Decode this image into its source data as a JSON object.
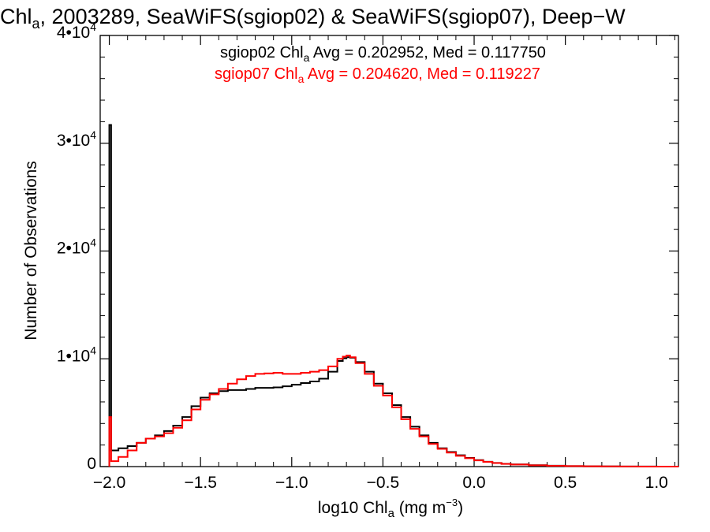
{
  "chart_data": {
    "type": "line",
    "title": {
      "pre": "Chl",
      "sub": "a",
      "post": ", 2003289, SeaWiFS(sgiop02) & SeaWiFS(sgiop07), Deep−W"
    },
    "xlabel": {
      "pre": "log10 Chl",
      "sub": "a",
      "mid": " (mg m",
      "sup": "−3",
      "post": ")"
    },
    "ylabel": "Number of Observations",
    "xlim": [
      -2.05,
      1.12
    ],
    "ylim": [
      0,
      40000
    ],
    "x_ticks": [
      {
        "value": -2.0,
        "label": "−2.0"
      },
      {
        "value": -1.5,
        "label": "−1.5"
      },
      {
        "value": -1.0,
        "label": "−1.0"
      },
      {
        "value": -0.5,
        "label": "−0.5"
      },
      {
        "value": 0.0,
        "label": "0.0"
      },
      {
        "value": 0.5,
        "label": "0.5"
      },
      {
        "value": 1.0,
        "label": "1.0"
      }
    ],
    "y_ticks": [
      {
        "value": 0,
        "base": "0",
        "exp": ""
      },
      {
        "value": 10000,
        "base": "1•10",
        "exp": "4"
      },
      {
        "value": 20000,
        "base": "2•10",
        "exp": "4"
      },
      {
        "value": 30000,
        "base": "3•10",
        "exp": "4"
      },
      {
        "value": 40000,
        "base": "4•10",
        "exp": "4"
      }
    ],
    "legend_placement": "top-center",
    "series": [
      {
        "name": "sgiop02",
        "color": "#000000",
        "legend": {
          "pre": "sgiop02 Chl",
          "sub": "a",
          "post": " Avg = 0.202952, Med = 0.117750"
        },
        "x": [
          -2.0,
          -1.99,
          -1.95,
          -1.9,
          -1.85,
          -1.8,
          -1.75,
          -1.7,
          -1.65,
          -1.6,
          -1.55,
          -1.5,
          -1.45,
          -1.4,
          -1.35,
          -1.3,
          -1.25,
          -1.2,
          -1.15,
          -1.1,
          -1.05,
          -1.0,
          -0.95,
          -0.9,
          -0.85,
          -0.8,
          -0.75,
          -0.72,
          -0.7,
          -0.68,
          -0.65,
          -0.6,
          -0.55,
          -0.5,
          -0.45,
          -0.4,
          -0.35,
          -0.3,
          -0.25,
          -0.2,
          -0.15,
          -0.1,
          -0.05,
          0.0,
          0.05,
          0.1,
          0.15,
          0.2,
          0.3,
          0.4,
          0.5,
          0.6,
          0.7,
          0.8,
          0.9,
          1.0,
          1.12
        ],
        "values": [
          31700,
          1500,
          1700,
          1900,
          2200,
          2600,
          2900,
          3300,
          3800,
          4600,
          5600,
          6400,
          6800,
          7000,
          7100,
          7100,
          7200,
          7300,
          7300,
          7350,
          7450,
          7600,
          7750,
          7900,
          8150,
          8800,
          9800,
          10050,
          10150,
          10100,
          9700,
          8800,
          7700,
          6800,
          5700,
          4600,
          3700,
          2900,
          2200,
          1700,
          1350,
          1050,
          800,
          600,
          450,
          340,
          260,
          200,
          130,
          80,
          50,
          30,
          20,
          10,
          5,
          3,
          0
        ]
      },
      {
        "name": "sgiop07",
        "color": "#ff0000",
        "legend": {
          "pre": "sgiop07 Chl",
          "sub": "a",
          "post": " Avg = 0.204620, Med = 0.119227"
        },
        "x": [
          -2.0,
          -1.99,
          -1.95,
          -1.9,
          -1.85,
          -1.8,
          -1.75,
          -1.7,
          -1.65,
          -1.6,
          -1.55,
          -1.5,
          -1.45,
          -1.4,
          -1.35,
          -1.3,
          -1.25,
          -1.2,
          -1.15,
          -1.1,
          -1.05,
          -1.0,
          -0.95,
          -0.9,
          -0.85,
          -0.8,
          -0.75,
          -0.72,
          -0.7,
          -0.68,
          -0.65,
          -0.6,
          -0.55,
          -0.5,
          -0.45,
          -0.4,
          -0.35,
          -0.3,
          -0.25,
          -0.2,
          -0.15,
          -0.1,
          -0.05,
          0.0,
          0.05,
          0.1,
          0.15,
          0.2,
          0.3,
          0.4,
          0.5,
          0.6,
          0.7,
          0.8,
          0.9,
          1.0,
          1.12
        ],
        "values": [
          4600,
          500,
          900,
          1500,
          2200,
          2600,
          2800,
          3100,
          3600,
          4300,
          5300,
          6200,
          6700,
          7200,
          7700,
          8100,
          8400,
          8600,
          8650,
          8700,
          8600,
          8600,
          8700,
          8800,
          8950,
          9300,
          10000,
          10200,
          10300,
          10150,
          9600,
          8600,
          7500,
          6600,
          5500,
          4400,
          3500,
          2800,
          2100,
          1650,
          1300,
          1000,
          780,
          580,
          440,
          330,
          250,
          190,
          120,
          75,
          45,
          25,
          15,
          8,
          4,
          2,
          0
        ]
      }
    ]
  }
}
